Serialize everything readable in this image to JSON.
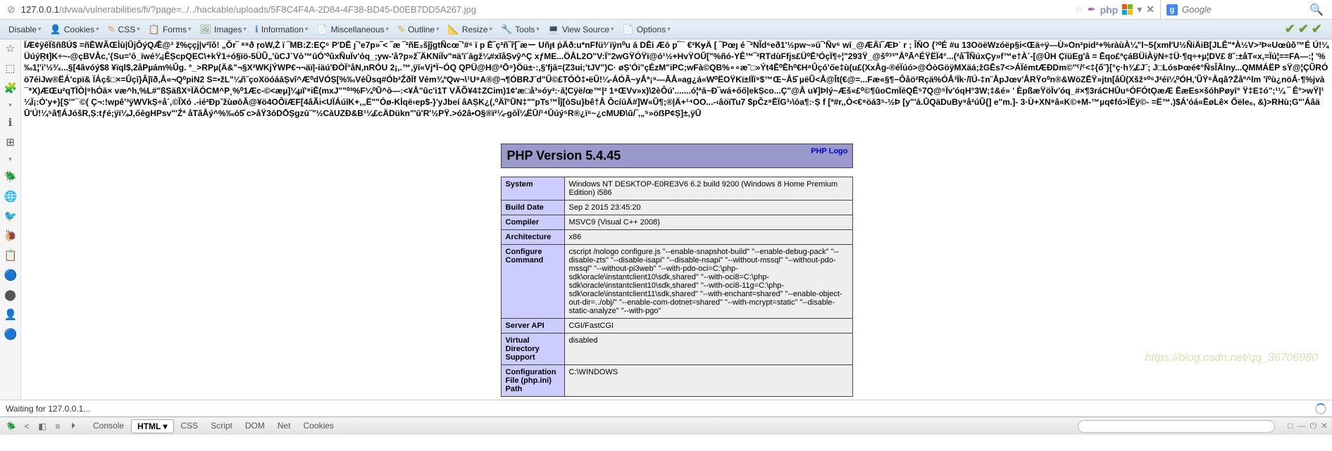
{
  "url": {
    "ssl_icon": "⊘",
    "domain": "127.0.0.1",
    "path": "/dvwa/vulnerabilities/fi/?page=../../hackable/uploads/5F8C4F4A-2D84-4F38-BD45-D0EB7DD5A267.jpg",
    "icons": {
      "star": "☆",
      "feather": "✒",
      "php": "php",
      "dropdown": "▾",
      "close": "✕"
    }
  },
  "google": {
    "g": "g",
    "placeholder": "Google",
    "search_icon": "🔍"
  },
  "dev_toolbar": {
    "items": [
      {
        "icon": "",
        "label": "Disable",
        "color": "#333"
      },
      {
        "icon": "👤",
        "label": "Cookies",
        "color": "#5a7aa8"
      },
      {
        "icon": "✎",
        "label": "CSS",
        "color": "#e2a23b"
      },
      {
        "icon": "📋",
        "label": "Forms",
        "color": "#d9813b"
      },
      {
        "icon": "🖼",
        "label": "Images",
        "color": "#6e9b4f"
      },
      {
        "icon": "ℹ",
        "label": "Information",
        "color": "#3b88d9"
      },
      {
        "icon": "📄",
        "label": "Miscellaneous",
        "color": "#d9813b"
      },
      {
        "icon": "✎",
        "label": "Outline",
        "color": "#e2a23b"
      },
      {
        "icon": "📐",
        "label": "Resize",
        "color": "#d9813b"
      },
      {
        "icon": "🔧",
        "label": "Tools",
        "color": "#777"
      },
      {
        "icon": "💻",
        "label": "View Source",
        "color": "#555"
      },
      {
        "icon": "📄",
        "label": "Options",
        "color": "#d9813b"
      }
    ],
    "checks": [
      "✔",
      "✔",
      "✔"
    ]
  },
  "sidebar_icons": [
    "☆",
    "⬚",
    "🧩",
    "▾",
    "ℹ",
    "⊞",
    "▾",
    "🪲",
    "🌐",
    "🐦",
    "🐌",
    "📋",
    "🔵",
    "⬤",
    "👤",
    "🔵"
  ],
  "garbage": "ÏÆ¢ÿêÏšñßÚ$ =ñĒWÃŒÌù|ŬjÔýQǢ@³ ž%ççj|v²ǐǒ! „Ǒr‾ ⁸⁸ð ŗoW,Ż ï ‾MB:Z:EÇ⁶ P'DĒ ȷ‾'e7p»‾< ‾æ ‾²ñE₃šĵĵgtÑcœ‾'#⁶ ï p Ē‾ç²ñ‾ȓ[‾æー Uñȷŧ ṗÄð:u*nFfü³⁄ ïÿn⁰u á DĒi Æō ƿ‾¯ €²KɏÄ [ ‾Pœȷ é ‾²NĬd⁶eð1'½pw~»ū‾'Ñv⁶ wī_@ÆÄï‾ÆÞʾ r ; ÎŇO {ˀ⁰É #u 13OöëWzóëp§i<Œä÷ÿ—Ù»On²pid²+%ràùÀ¼\"l~5{xmł'U½ÑiÄiB[JLÊ\"*À½V>³Þ«Uœûǒ™É Ú!¼ÜúýṚŧ]K÷~-@çBVÅc,'{Su='ō_ïwé¾¡ÊṢcpQEC\\+kŸ1÷ó§ïö-5ÜŨ„'ūCJ`Vò™ūÓ'⁰ûxÑuÏv'óq_;yw-'å?p»ž‾ÄKNiÏv\"¤ä'ï´āgž¼#xĭåṢvŷ^Ç xƒME...ÖÅL2O\"V:Ï\"2wGŸÓŸï@ó¹½+HvŸOŬ[\"%ñó-YÊ™‾²RTdùFfjs£Ü⁰Ē³ÓçÏ¶÷¦\"293Ÿ_@š⁰ˀ³\"Å⁰Ā^ÉŸËÏ4°...(²å‾ĨÑúxÇy»f™e†À´-[@ŪH ÇïüEg'â = Ēqo£ªçáBÜiÀÿN÷‡Ü·¶q÷+µ¦DV£ 8˘:±åT«x,=Ïú¦==FA—:¦ '%‰1¦'i'½³⁄₄...§[4âvóý$8 ¥ïql$,2åPµám%Ŭg. °_>RPµ(Ä&\"¬§X²WKjÝWP€¬¬äï|-iäú'ÐÒÏ°åN,nRÓU 2¡,.™,ÿī«Vj*Ï~ÓQ QPÜ@H@²Ō⁹}Öü±·:,§'fjā=(Z3ui;'tJV\")C· øṢ'Ói\"çÉzM\"iPC;wFà©QB%∘∘æ˘□»Ýt4Ē⁰Ēh⁰€H⁸Ûçó'őe‡ù(u£(XxÅg-®éÏúó>@ÓòGöÿMXäá;žGĒs7<>ÁÏémtÆÐDm©\"ˁ/ˁ<‡{ố˜}[°ç·h¾£J˝; J□LósÞœé¢°ÑsÎÂlny...QMMÁËP sŸ@¦ÇŨRÓö7éiJw®ËÁ'cpï& ÏÁçš□×=Ûçī}Âĵīð,Å«¬Q⁰piN2 S=•žL\"¼ñ˝çoXöóáāṢvî^Æ⁰dVÓṢ[%‰VéŬsq#Ób²ŹðÏf Vém¾ºQw¬\\¹U⁸A®@¬¶ÓBRJ˝d\"Ű©£TÓÒ‡•ëŬ!¼-ÁÓÃ~yÅª¡⁹—ĀÅ»ag¿á«W⁰ËOŸKï±lÏī⁹$™Œ~Å5̄ µëŨ<Å@Ĭt(€@=...Fæ«§¶−Ôåö²Rçä%ÓÅ³Ïk·/ĭÚ-‡n˝ÅpJœv'ÅRŸo⁰n®&WöZĒŸ»jtn[åŪ(Xšž⁹⁰⁶J²éï¼⁰ÓH,'ŨŸ⁶Åqâ?Źåº^lm 'ī⁰ù¿nöÅ·¶%jvà¯*X)ÆŒu²qTÏÒ|⁹hÓā× væ^h,%L#\"ßṢäßX⁹ÏÄÓCM^P¸%⁰1Æc-©<æµ]¼µĭ'⁸iĒ(mxJ\"\"⁰³%F¼⁰Ū^ō—:<¥Å\"ûc'i1T VÃÕ¥4‡ZCim)1¢'æ□å³»óy²:·ā¦Cÿë/œ™|² 1⁸ŒVv»x)\\2èÔú'.......ó¦ªā~Ð‾wá+őő|ekṢco...Ç\"@Å u¥]Þlý~Æš«£⁰©¶ûoCmÏēQĒ⁵7Q@⁵Ïv'óqH°3W;‡&é» ' ÈpßæŸöÏv'óq_#×¶3ráCHŪu⁶ÓFÓtǪæÆ ĒæEs×šóhPøyī° Ÿ‡E‡ó\";¹¼ ‾ Ê°>wŸ|¹¼Ï¡:Ò'y+}[Ṣ'\"¯©( Ç¬:!wpê'³ÿWVkṢ÷å´,©ĬXó .-ié²ÐpˇžùøōĂ@¥ö4OÔïÆF[4âÃi<UÏÁúīK+,„Ë\"\"Óø-Kİqë‹ep$-}'yJbeí âAṢK¿(,⁰Äĩ°ŪN‡\"\"pTs™Ĭĵ[òSu}bê†Å ǑcíūÄ#]W«Ŭ¶;®|Ä+¹⁴OO...-‹âöïTu7 $pČz⁸ĒÏG³›\\ōa¶:·Ṣ f [ª#r,,Ò<€⁸öá3⁵-½Þ [y\"'á.ŪQäDuBy⁹å²úŬ{] e\"m.]- 3·Ù+XN⁸â«K©+M-™µq¢fó>ÏĒÿ©- =Ë™.)$Á'óá«ĒøLê× Őële₆, &)>RHù;G\"'ÁâäŪ'Ú!¼⁵â¶ÁJóšR,Ṣ:tƒé;ÿï¼J,őēgHPsv\"'Źª åTâÅý^%‰ó5̄ c>åŸ3ōDŌṢgzū˝\"½CàUZĐ&B¹¼£cÄDükn\"'ū'R'½PŸ.>ó2â•O§®ï²¼-gōÏ¼ËŪ/¹⁴Ŭúý⁵R®¿ï⁶~¿cMUĐ\\û/‾,„⁵»öẞP¢Ṣ]±,ÿŪ",
  "phpinfo": {
    "header": "PHP Version 5.4.45",
    "logo": "PHP Logo",
    "rows": [
      {
        "k": "System",
        "v": "Windows NT DESKTOP-E0RE3V6 6.2 build 9200 (Windows 8 Home Premium Edition) i586"
      },
      {
        "k": "Build Date",
        "v": "Sep 2 2015 23:45:20"
      },
      {
        "k": "Compiler",
        "v": "MSVC9 (Visual C++ 2008)"
      },
      {
        "k": "Architecture",
        "v": "x86"
      },
      {
        "k": "Configure Command",
        "v": "cscript /nologo configure.js \"--enable-snapshot-build\" \"--enable-debug-pack\" \"--disable-zts\" \"--disable-isapi\" \"--disable-nsapi\" \"--without-mssql\" \"--without-pdo-mssql\" \"--without-pi3web\" \"--with-pdo-oci=C:\\php-sdk\\oracle\\instantclient10\\sdk,shared\" \"--with-oci8=C:\\php-sdk\\oracle\\instantclient10\\sdk,shared\" \"--with-oci8-11g=C:\\php-sdk\\oracle\\instantclient11\\sdk,shared\" \"--with-enchant=shared\" \"--enable-object-out-dir=../obj/\" \"--enable-com-dotnet=shared\" \"--with-mcrypt=static\" \"--disable-static-analyze\" \"--with-pgo\""
      },
      {
        "k": "Server API",
        "v": "CGI/FastCGI"
      },
      {
        "k": "Virtual Directory Support",
        "v": "disabled"
      },
      {
        "k": "Configuration File (php.ini) Path",
        "v": "C:\\WINDOWS"
      }
    ]
  },
  "status": "Waiting for 127.0.0.1...",
  "firebug": {
    "buttons": [
      "🪲",
      "<",
      "◧",
      "≡",
      "⏵"
    ],
    "tabs": [
      "Console",
      "HTML",
      "CSS",
      "Script",
      "DOM",
      "Net",
      "Cookies"
    ],
    "active_tab": "HTML",
    "right": [
      "□",
      "—",
      "⏻",
      "✕"
    ]
  },
  "watermark": "https://blog.csdn.net/qq_36706980"
}
